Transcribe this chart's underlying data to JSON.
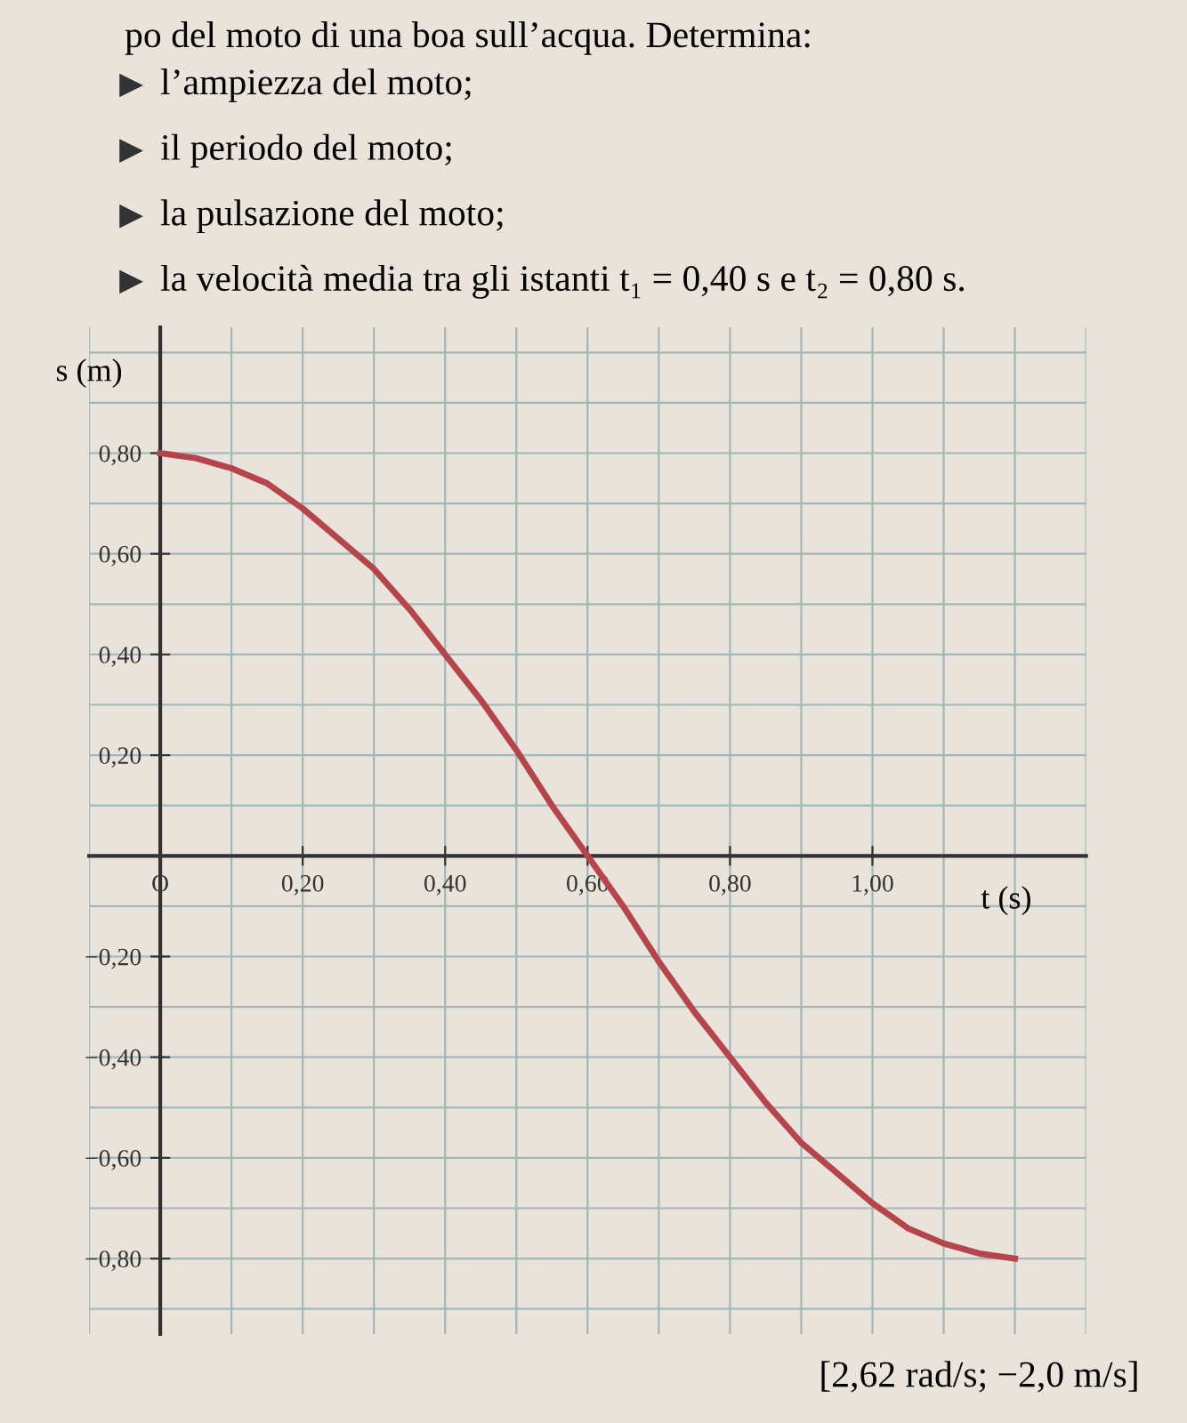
{
  "chart_data": {
    "type": "line",
    "xlabel": "t (s)",
    "ylabel": "s (m)",
    "annotations": [
      "po del moto di una boa sull’acqua. Determina:",
      "l’ampiezza del moto;",
      "il periodo del moto;",
      "la pulsazione del moto;",
      "la velocità media tra gli istanti t₁ = 0,40 s e t₂ = 0,80 s.",
      "[2,62 rad/s; −2,0 m/s]"
    ],
    "x": [
      0,
      0.05,
      0.1,
      0.15,
      0.2,
      0.25,
      0.3,
      0.35,
      0.4,
      0.45,
      0.5,
      0.55,
      0.6,
      0.65,
      0.7,
      0.75,
      0.8,
      0.85,
      0.9,
      0.95,
      1.0,
      1.05,
      1.1,
      1.15,
      1.2
    ],
    "series": [
      {
        "color": "#b5454a",
        "values": [
          0.8,
          0.79,
          0.77,
          0.74,
          0.69,
          0.63,
          0.57,
          0.49,
          0.4,
          0.31,
          0.21,
          0.1,
          0,
          -0.1,
          -0.21,
          -0.31,
          -0.4,
          -0.49,
          -0.57,
          -0.63,
          -0.69,
          -0.74,
          -0.77,
          -0.79,
          -0.8
        ]
      }
    ],
    "xlim": [
      -0.1,
      1.3
    ],
    "ylim": [
      -0.95,
      1.05
    ],
    "xticks": [
      {
        "value": 0,
        "label": "O"
      },
      {
        "value": 0.2,
        "label": "0,20"
      },
      {
        "value": 0.4,
        "label": "0,40"
      },
      {
        "value": 0.6,
        "label": "0,60"
      },
      {
        "value": 0.8,
        "label": "0,80"
      },
      {
        "value": 1.0,
        "label": "1,00"
      }
    ],
    "yticks": [
      {
        "value": -0.8,
        "label": "−0,80"
      },
      {
        "value": -0.6,
        "label": "−0,60"
      },
      {
        "value": -0.4,
        "label": "−0,40"
      },
      {
        "value": -0.2,
        "label": "−0,20"
      },
      {
        "value": 0.2,
        "label": "0,20"
      },
      {
        "value": 0.4,
        "label": "0,40"
      },
      {
        "value": 0.6,
        "label": "0,60"
      },
      {
        "value": 0.8,
        "label": "0,80"
      }
    ],
    "grid": true,
    "marker": "none",
    "line_style": "solid"
  }
}
